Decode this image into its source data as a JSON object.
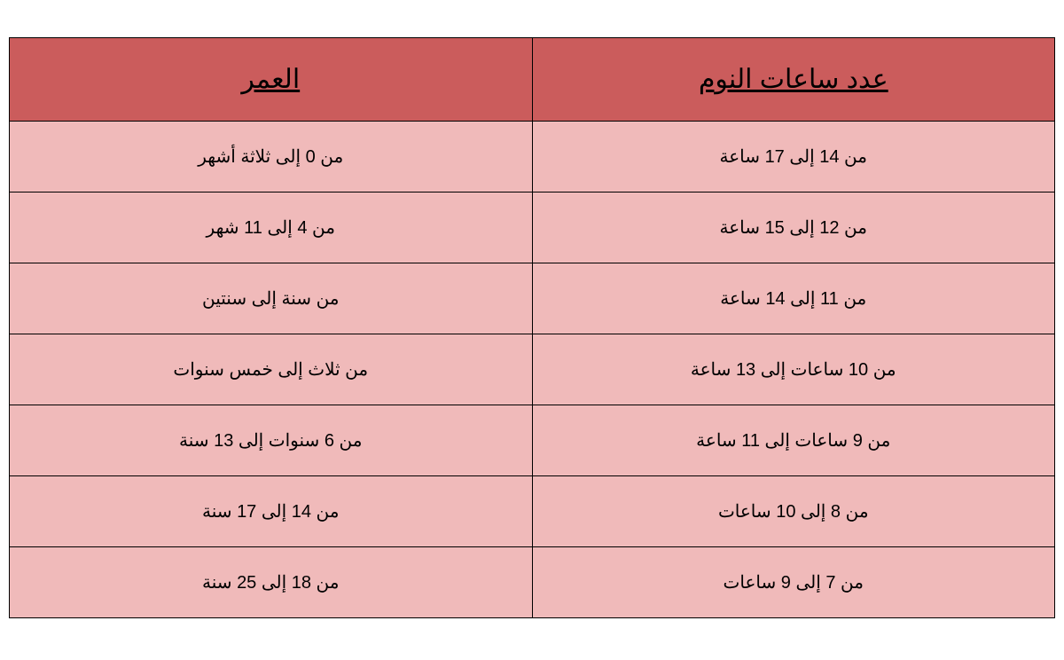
{
  "table": {
    "columns": [
      {
        "key": "sleep",
        "label": "عدد ساعات النوم"
      },
      {
        "key": "age",
        "label": "العمر"
      }
    ],
    "rows": [
      {
        "sleep": "من 14 إلى 17 ساعة",
        "age": "من 0 إلى ثلاثة أشهر"
      },
      {
        "sleep": "من 12 إلى 15 ساعة",
        "age": "من 4 إلى 11 شهر"
      },
      {
        "sleep": "من 11 إلى 14 ساعة",
        "age": "من  سنة إلى سنتين"
      },
      {
        "sleep": "من 10 ساعات إلى 13 ساعة",
        "age": "من ثلاث إلى خمس سنوات"
      },
      {
        "sleep": "من 9 ساعات إلى 11 ساعة",
        "age": "من 6 سنوات إلى 13 سنة"
      },
      {
        "sleep": "من 8 إلى 10 ساعات",
        "age": "من 14 إلى 17 سنة"
      },
      {
        "sleep": "من 7 إلى 9 ساعات",
        "age": "من 18 إلى 25 سنة"
      }
    ],
    "header_bg_color": "#cb5c5c",
    "row_bg_color": "#f0baba",
    "border_color": "#000000",
    "text_color": "#000000",
    "header_fontsize": 30,
    "cell_fontsize": 20
  }
}
